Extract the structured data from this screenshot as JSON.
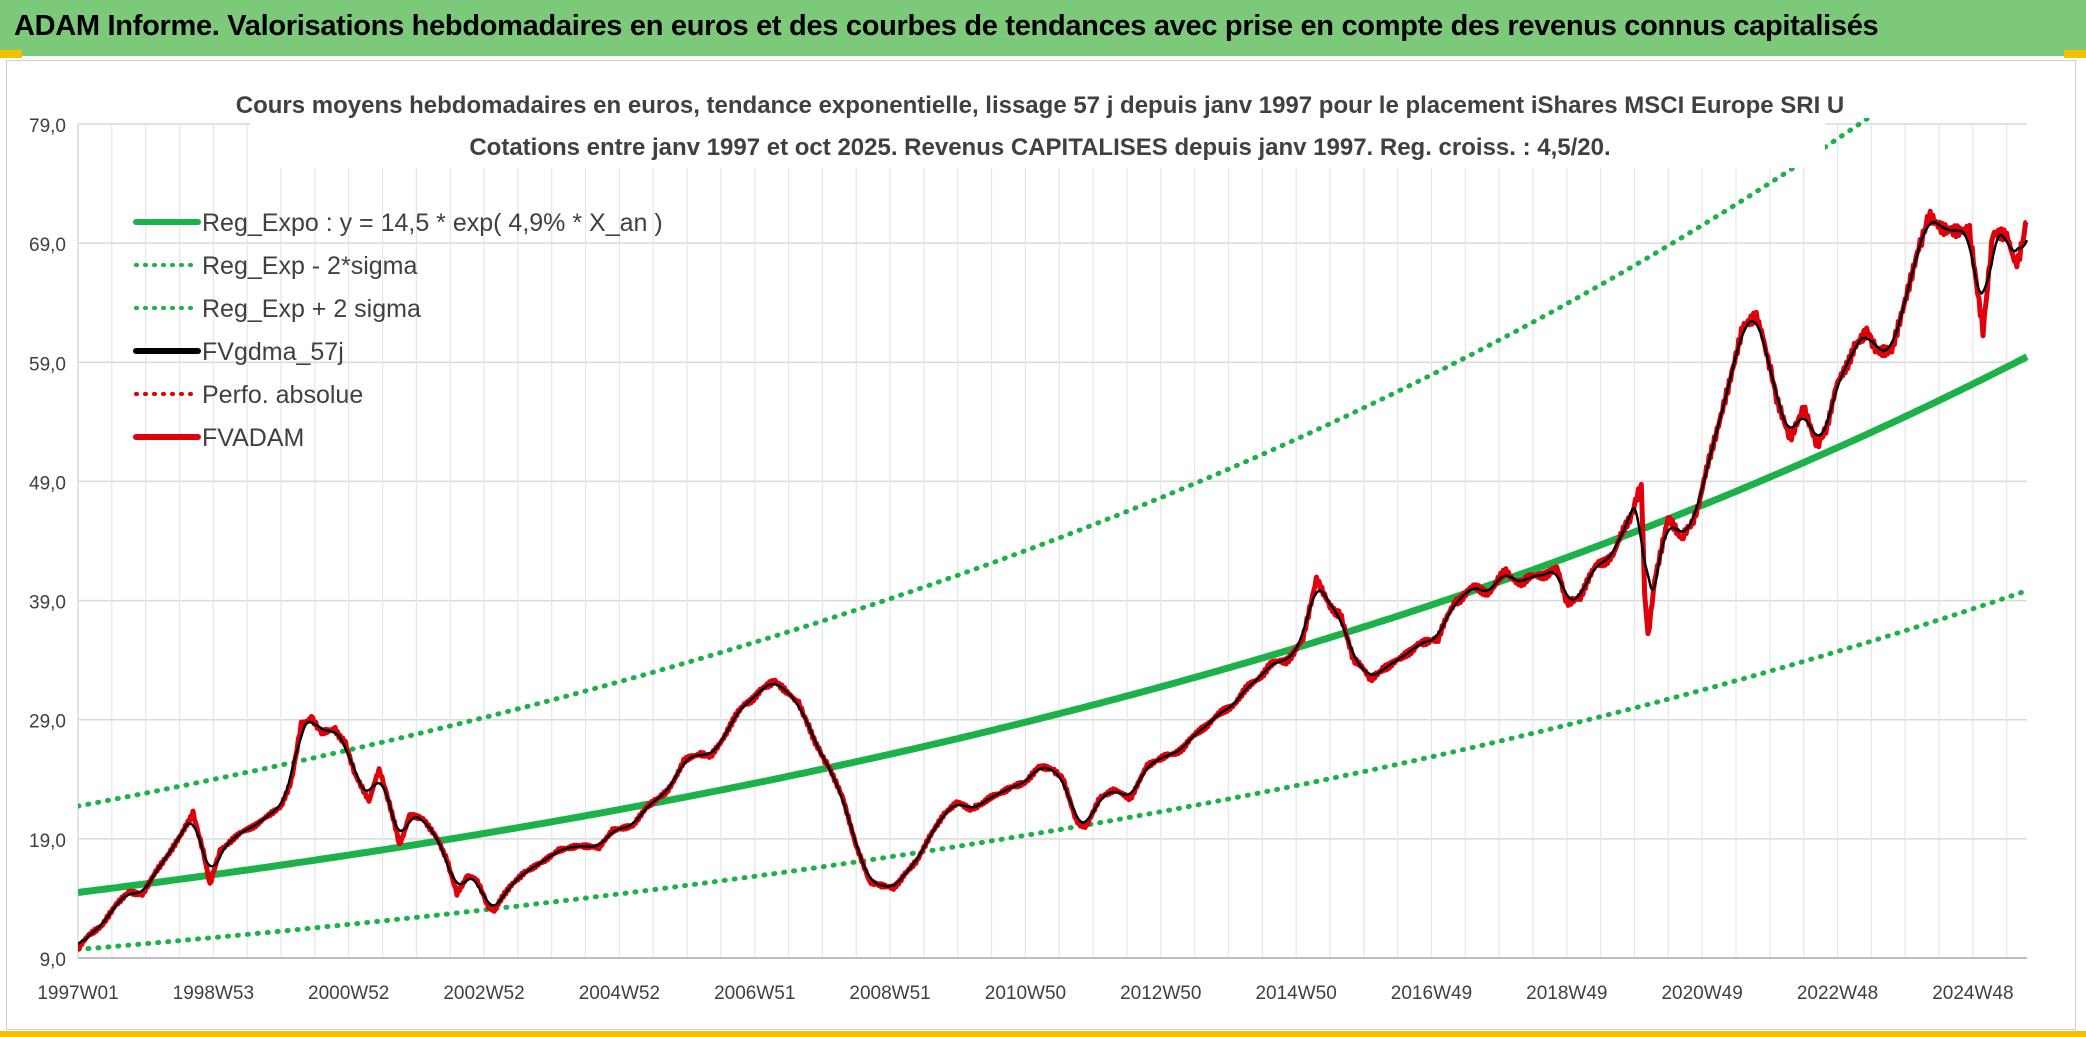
{
  "banner": {
    "title": "ADAM Informe. Valorisations hebdomadaires en euros et des courbes de tendances avec prise en compte des revenus connus capitalisés"
  },
  "chart_data": {
    "type": "line",
    "title_line1": "Cours moyens hebdomadaires en euros, tendance exponentielle, lissage 57 j depuis janv 1997 pour le placement iShares MSCI Europe SRI U",
    "title_line2": "Cotations entre janv 1997 et oct 2025. Revenus CAPITALISES depuis janv 1997. Reg. croiss. : 4,5/20.",
    "ylim": [
      9,
      79
    ],
    "xlim": [
      1997.0,
      2025.8
    ],
    "yticks": [
      "79,0",
      "69,0",
      "59,0",
      "49,0",
      "39,0",
      "29,0",
      "19,0",
      "9,0"
    ],
    "ytick_values": [
      79,
      69,
      59,
      49,
      39,
      29,
      19,
      9
    ],
    "xticks": [
      {
        "label": "1997W01",
        "year": 1997.0
      },
      {
        "label": "1998W53",
        "year": 1999.0
      },
      {
        "label": "2000W52",
        "year": 2001.0
      },
      {
        "label": "2002W52",
        "year": 2003.0
      },
      {
        "label": "2004W52",
        "year": 2005.0
      },
      {
        "label": "2006W51",
        "year": 2007.0
      },
      {
        "label": "2008W51",
        "year": 2009.0
      },
      {
        "label": "2010W50",
        "year": 2011.0
      },
      {
        "label": "2012W50",
        "year": 2013.0
      },
      {
        "label": "2014W50",
        "year": 2015.0
      },
      {
        "label": "2016W49",
        "year": 2017.0
      },
      {
        "label": "2018W49",
        "year": 2019.0
      },
      {
        "label": "2020W49",
        "year": 2021.0
      },
      {
        "label": "2022W48",
        "year": 2023.0
      },
      {
        "label": "2024W48",
        "year": 2025.0
      }
    ],
    "legend": [
      {
        "name": "Reg_Expo : y = 14,5 * exp( 4,9% *  X_an )",
        "color": "#1db14a",
        "style": "solid"
      },
      {
        "name": "Reg_Exp - 2*sigma",
        "color": "#1db14a",
        "style": "dotted"
      },
      {
        "name": "Reg_Exp + 2 sigma",
        "color": "#1db14a",
        "style": "dotted"
      },
      {
        "name": "FVgdma_57j",
        "color": "#000000",
        "style": "solid"
      },
      {
        "name": "Perfo. absolue",
        "color": "#e0000a",
        "style": "dotted"
      },
      {
        "name": "FVADAM",
        "color": "#e0000a",
        "style": "solid"
      }
    ],
    "regression": {
      "a": 14.5,
      "rate": 0.049,
      "minus2sigma_factor": 0.67,
      "plus2sigma_factor": 1.5
    },
    "series": [
      {
        "name": "FVADAM",
        "points": [
          [
            1997.0,
            9.6
          ],
          [
            1997.15,
            11.0
          ],
          [
            1997.35,
            11.8
          ],
          [
            1997.55,
            13.5
          ],
          [
            1997.75,
            14.6
          ],
          [
            1997.95,
            14.3
          ],
          [
            1998.15,
            16.2
          ],
          [
            1998.35,
            17.7
          ],
          [
            1998.55,
            19.5
          ],
          [
            1998.7,
            21.3
          ],
          [
            1998.85,
            17.9
          ],
          [
            1998.95,
            15.1
          ],
          [
            1999.1,
            18.0
          ],
          [
            1999.3,
            19.0
          ],
          [
            1999.55,
            20.0
          ],
          [
            1999.8,
            20.8
          ],
          [
            2000.0,
            21.6
          ],
          [
            2000.15,
            24.0
          ],
          [
            2000.3,
            28.6
          ],
          [
            2000.45,
            29.3
          ],
          [
            2000.6,
            28.0
          ],
          [
            2000.8,
            28.3
          ],
          [
            2000.95,
            26.9
          ],
          [
            2001.1,
            24.5
          ],
          [
            2001.3,
            22.3
          ],
          [
            2001.45,
            24.7
          ],
          [
            2001.6,
            22.0
          ],
          [
            2001.75,
            18.5
          ],
          [
            2001.9,
            21.0
          ],
          [
            2002.1,
            20.6
          ],
          [
            2002.3,
            19.0
          ],
          [
            2002.45,
            17.4
          ],
          [
            2002.6,
            14.3
          ],
          [
            2002.75,
            16.0
          ],
          [
            2002.9,
            15.4
          ],
          [
            2003.05,
            13.4
          ],
          [
            2003.15,
            12.9
          ],
          [
            2003.4,
            15.2
          ],
          [
            2003.6,
            16.3
          ],
          [
            2003.9,
            17.3
          ],
          [
            2004.1,
            18.1
          ],
          [
            2004.4,
            18.4
          ],
          [
            2004.7,
            18.2
          ],
          [
            2004.9,
            19.6
          ],
          [
            2005.2,
            20.0
          ],
          [
            2005.4,
            21.6
          ],
          [
            2005.7,
            23.0
          ],
          [
            2005.95,
            25.4
          ],
          [
            2006.2,
            26.3
          ],
          [
            2006.35,
            25.8
          ],
          [
            2006.6,
            28.2
          ],
          [
            2006.85,
            30.3
          ],
          [
            2007.1,
            31.5
          ],
          [
            2007.3,
            32.1
          ],
          [
            2007.5,
            31.0
          ],
          [
            2007.65,
            30.6
          ],
          [
            2007.8,
            28.3
          ],
          [
            2007.95,
            26.6
          ],
          [
            2008.1,
            25.0
          ],
          [
            2008.3,
            22.5
          ],
          [
            2008.5,
            18.5
          ],
          [
            2008.7,
            15.5
          ],
          [
            2008.85,
            15.0
          ],
          [
            2009.05,
            14.8
          ],
          [
            2009.2,
            16.0
          ],
          [
            2009.4,
            17.2
          ],
          [
            2009.6,
            19.3
          ],
          [
            2009.8,
            21.0
          ],
          [
            2010.0,
            22.0
          ],
          [
            2010.2,
            21.3
          ],
          [
            2010.35,
            22.0
          ],
          [
            2010.6,
            22.7
          ],
          [
            2010.8,
            23.4
          ],
          [
            2011.0,
            23.8
          ],
          [
            2011.2,
            25.2
          ],
          [
            2011.4,
            25.0
          ],
          [
            2011.55,
            24.0
          ],
          [
            2011.75,
            20.5
          ],
          [
            2011.9,
            20.1
          ],
          [
            2012.1,
            22.4
          ],
          [
            2012.3,
            23.0
          ],
          [
            2012.55,
            22.5
          ],
          [
            2012.8,
            25.0
          ],
          [
            2013.1,
            26.0
          ],
          [
            2013.35,
            26.7
          ],
          [
            2013.6,
            28.3
          ],
          [
            2013.85,
            29.3
          ],
          [
            2014.1,
            30.5
          ],
          [
            2014.35,
            32.0
          ],
          [
            2014.6,
            33.5
          ],
          [
            2014.85,
            34.0
          ],
          [
            2015.1,
            35.6
          ],
          [
            2015.3,
            40.6
          ],
          [
            2015.5,
            38.4
          ],
          [
            2015.65,
            38.0
          ],
          [
            2015.85,
            34.0
          ],
          [
            2016.1,
            32.5
          ],
          [
            2016.3,
            33.5
          ],
          [
            2016.55,
            34.0
          ],
          [
            2016.8,
            35.5
          ],
          [
            2017.1,
            35.8
          ],
          [
            2017.35,
            39.0
          ],
          [
            2017.6,
            40.0
          ],
          [
            2017.85,
            39.8
          ],
          [
            2018.1,
            41.3
          ],
          [
            2018.35,
            40.5
          ],
          [
            2018.6,
            41.2
          ],
          [
            2018.85,
            41.6
          ],
          [
            2019.0,
            39.0
          ],
          [
            2019.2,
            39.5
          ],
          [
            2019.45,
            42.0
          ],
          [
            2019.7,
            43.0
          ],
          [
            2019.95,
            46.2
          ],
          [
            2020.1,
            48.5
          ],
          [
            2020.15,
            40.0
          ],
          [
            2020.2,
            35.8
          ],
          [
            2020.3,
            40.5
          ],
          [
            2020.5,
            45.8
          ],
          [
            2020.7,
            44.0
          ],
          [
            2020.85,
            45.5
          ],
          [
            2020.95,
            47.0
          ],
          [
            2021.2,
            53.0
          ],
          [
            2021.4,
            57.5
          ],
          [
            2021.6,
            62.3
          ],
          [
            2021.8,
            63.2
          ],
          [
            2021.95,
            59.5
          ],
          [
            2022.1,
            56.0
          ],
          [
            2022.3,
            52.5
          ],
          [
            2022.5,
            55.0
          ],
          [
            2022.7,
            51.7
          ],
          [
            2022.85,
            54.0
          ],
          [
            2023.0,
            57.0
          ],
          [
            2023.25,
            60.5
          ],
          [
            2023.45,
            61.7
          ],
          [
            2023.6,
            60.0
          ],
          [
            2023.8,
            60.2
          ],
          [
            2024.0,
            64.5
          ],
          [
            2024.2,
            69.0
          ],
          [
            2024.35,
            71.0
          ],
          [
            2024.55,
            70.0
          ],
          [
            2024.75,
            70.0
          ],
          [
            2024.95,
            70.2
          ],
          [
            2025.05,
            66.0
          ],
          [
            2025.15,
            61.9
          ],
          [
            2025.3,
            69.5
          ],
          [
            2025.5,
            69.3
          ],
          [
            2025.65,
            67.5
          ],
          [
            2025.8,
            70.8
          ]
        ]
      }
    ]
  }
}
